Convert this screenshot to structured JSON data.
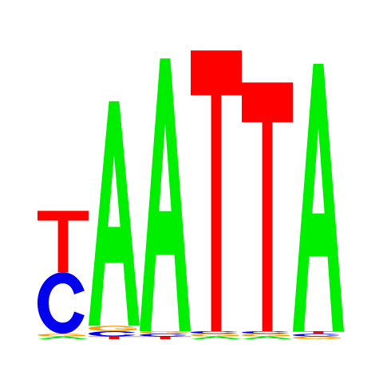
{
  "chart_data": {
    "type": "sequence-logo",
    "alphabet": [
      "A",
      "C",
      "G",
      "T"
    ],
    "colors": {
      "A": "#00ee00",
      "C": "#0000ee",
      "G": "#f5a000",
      "T": "#ff0000"
    },
    "positions": [
      {
        "index": 1,
        "letters": [
          {
            "letter": "A",
            "height": 0.01
          },
          {
            "letter": "G",
            "height": 0.01
          },
          {
            "letter": "C",
            "height": 0.23
          },
          {
            "letter": "T",
            "height": 0.23
          }
        ]
      },
      {
        "index": 2,
        "letters": [
          {
            "letter": "T",
            "height": 0.01
          },
          {
            "letter": "C",
            "height": 0.02
          },
          {
            "letter": "G",
            "height": 0.02
          },
          {
            "letter": "A",
            "height": 0.84
          }
        ]
      },
      {
        "index": 3,
        "letters": [
          {
            "letter": "T",
            "height": 0.01
          },
          {
            "letter": "C",
            "height": 0.01
          },
          {
            "letter": "G",
            "height": 0.01
          },
          {
            "letter": "A",
            "height": 1.02
          }
        ]
      },
      {
        "index": 4,
        "letters": [
          {
            "letter": "A",
            "height": 0.01
          },
          {
            "letter": "G",
            "height": 0.01
          },
          {
            "letter": "C",
            "height": 0.01
          },
          {
            "letter": "T",
            "height": 1.05
          }
        ]
      },
      {
        "index": 5,
        "letters": [
          {
            "letter": "A",
            "height": 0.01
          },
          {
            "letter": "G",
            "height": 0.01
          },
          {
            "letter": "C",
            "height": 0.01
          },
          {
            "letter": "T",
            "height": 0.93
          }
        ]
      },
      {
        "index": 6,
        "letters": [
          {
            "letter": "G",
            "height": 0.01
          },
          {
            "letter": "C",
            "height": 0.01
          },
          {
            "letter": "T",
            "height": 0.01
          },
          {
            "letter": "A",
            "height": 1.0
          }
        ]
      }
    ]
  }
}
